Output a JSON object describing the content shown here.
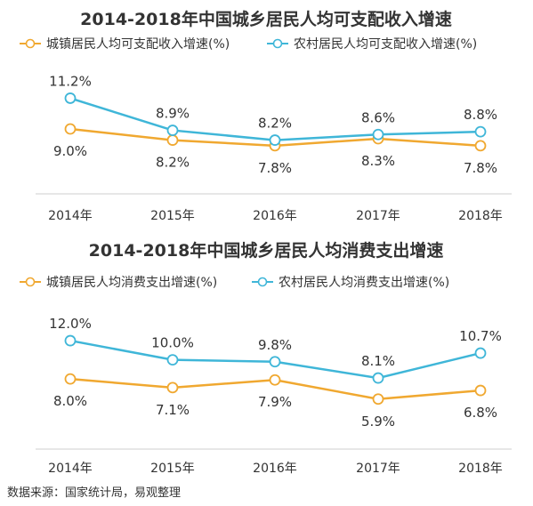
{
  "source": "数据来源：国家统计局，易观整理",
  "chart_data": [
    {
      "type": "line",
      "title": "2014-2018年中国城乡居民人均可支配收入增速",
      "categories": [
        "2014年",
        "2015年",
        "2016年",
        "2017年",
        "2018年"
      ],
      "series": [
        {
          "name": "城镇居民人均可支配收入增速(%)",
          "color": "#f0a830",
          "values": [
            9.0,
            8.2,
            7.8,
            8.3,
            7.8
          ],
          "labels": [
            "9.0%",
            "8.2%",
            "7.8%",
            "8.3%",
            "7.8%"
          ]
        },
        {
          "name": "农村居民人均可支配收入增速(%)",
          "color": "#3fb6d8",
          "values": [
            11.2,
            8.9,
            8.2,
            8.6,
            8.8
          ],
          "labels": [
            "11.2%",
            "8.9%",
            "8.2%",
            "8.6%",
            "8.8%"
          ]
        }
      ],
      "ylim": [
        5.5,
        12.5
      ],
      "grid": false,
      "legend": "top-left"
    },
    {
      "type": "line",
      "title": "2014-2018年中国城乡居民人均消费支出增速",
      "categories": [
        "2014年",
        "2015年",
        "2016年",
        "2017年",
        "2018年"
      ],
      "series": [
        {
          "name": "城镇居民人均消费支出增速(%)",
          "color": "#f0a830",
          "values": [
            8.0,
            7.1,
            7.9,
            5.9,
            6.8
          ],
          "labels": [
            "8.0%",
            "7.1%",
            "7.9%",
            "5.9%",
            "6.8%"
          ]
        },
        {
          "name": "农村居民人均消费支出增速(%)",
          "color": "#3fb6d8",
          "values": [
            12.0,
            10.0,
            9.8,
            8.1,
            10.7
          ],
          "labels": [
            "12.0%",
            "10.0%",
            "9.8%",
            "8.1%",
            "10.7%"
          ]
        }
      ],
      "ylim": [
        3.0,
        16.0
      ],
      "grid": false,
      "legend": "top-left"
    }
  ]
}
